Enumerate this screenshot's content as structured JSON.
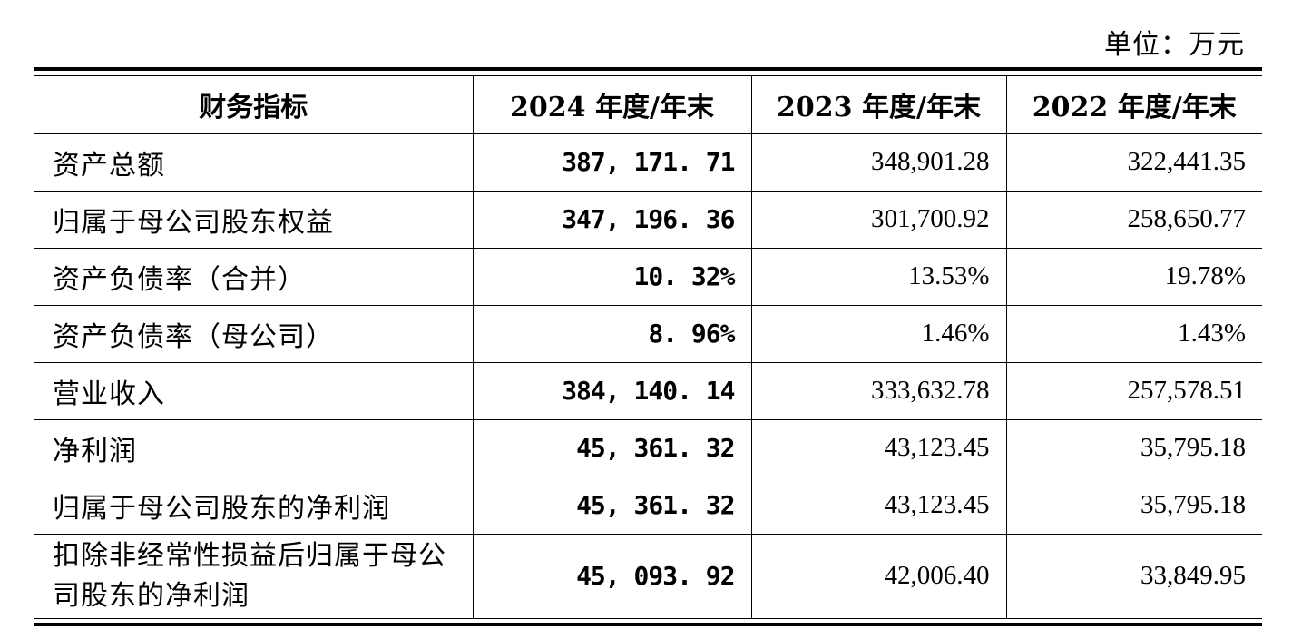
{
  "unit": "单位：万元",
  "table": {
    "headers": [
      "财务指标",
      "2024 年度/年末",
      "2023 年度/年末",
      "2022 年度/年末"
    ],
    "rows": [
      {
        "label": "资产总额",
        "v2024": "387, 171. 71",
        "v2023": "348,901.28",
        "v2022": "322,441.35"
      },
      {
        "label": "归属于母公司股东权益",
        "v2024": "347, 196. 36",
        "v2023": "301,700.92",
        "v2022": "258,650.77"
      },
      {
        "label": "资产负债率（合并）",
        "v2024": "10. 32%",
        "v2023": "13.53%",
        "v2022": "19.78%"
      },
      {
        "label": "资产负债率（母公司）",
        "v2024": "8. 96%",
        "v2023": "1.46%",
        "v2022": "1.43%"
      },
      {
        "label": "营业收入",
        "v2024": "384, 140. 14",
        "v2023": "333,632.78",
        "v2022": "257,578.51"
      },
      {
        "label": "净利润",
        "v2024": "45, 361. 32",
        "v2023": "43,123.45",
        "v2022": "35,795.18"
      },
      {
        "label": "归属于母公司股东的净利润",
        "v2024": "45, 361. 32",
        "v2023": "43,123.45",
        "v2022": "35,795.18"
      },
      {
        "label": "扣除非经常性损益后归属于母公司股东的净利润",
        "v2024": "45, 093. 92",
        "v2023": "42,006.40",
        "v2022": "33,849.95"
      }
    ]
  }
}
